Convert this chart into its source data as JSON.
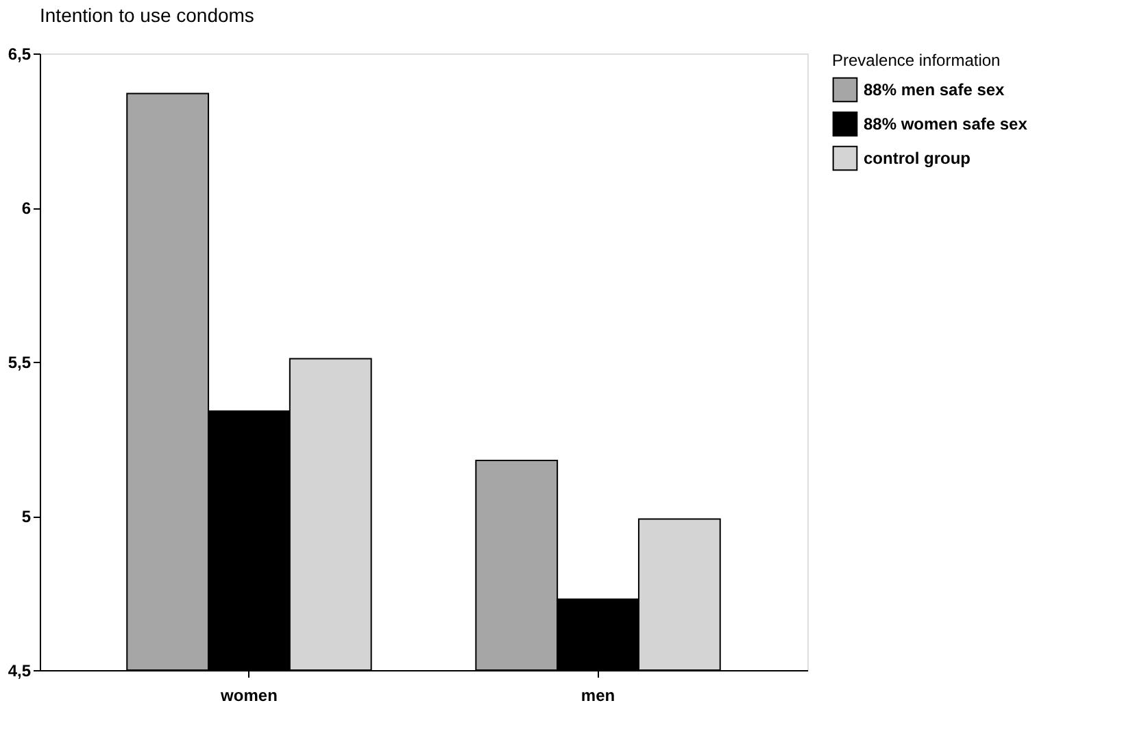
{
  "chart_data": {
    "type": "bar",
    "title": "Intention to use condoms",
    "categories": [
      "women",
      "men"
    ],
    "series": [
      {
        "name": "88% men safe sex",
        "color": "#a6a6a6",
        "values": [
          6.37,
          5.18
        ]
      },
      {
        "name": "88% women safe sex",
        "color": "#000000",
        "values": [
          5.34,
          4.73
        ]
      },
      {
        "name": "control group",
        "color": "#d4d4d4",
        "values": [
          5.51,
          4.99
        ]
      }
    ],
    "legend_title": "Prevalence information",
    "ylim": [
      4.5,
      6.5
    ],
    "yticks": [
      {
        "value": 4.5,
        "label": "4,5"
      },
      5,
      {
        "value": 5.5,
        "label": "5,5"
      },
      6,
      {
        "value": 6.5,
        "label": "6,5"
      }
    ],
    "grid": false,
    "legend": "top right"
  }
}
